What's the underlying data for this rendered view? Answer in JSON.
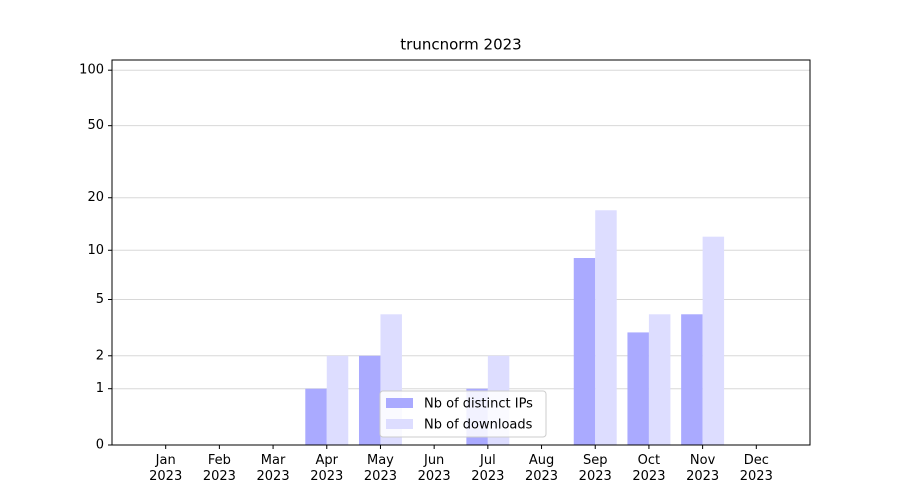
{
  "chart_data": {
    "type": "bar",
    "title": "truncnorm 2023",
    "categories": [
      "Jan\n2023",
      "Feb\n2023",
      "Mar\n2023",
      "Apr\n2023",
      "May\n2023",
      "Jun\n2023",
      "Jul\n2023",
      "Aug\n2023",
      "Sep\n2023",
      "Oct\n2023",
      "Nov\n2023",
      "Dec\n2023"
    ],
    "series": [
      {
        "name": "Nb of distinct IPs",
        "color": "#aaaaff",
        "values": [
          0,
          0,
          0,
          1,
          2,
          0,
          1,
          0,
          9,
          3,
          4,
          0
        ]
      },
      {
        "name": "Nb of downloads",
        "color": "#ddddff",
        "values": [
          0,
          0,
          0,
          2,
          4,
          0,
          2,
          0,
          17,
          4,
          12,
          0
        ]
      }
    ],
    "scale": "log1p",
    "ylim": [
      0,
      113.5
    ],
    "yticks": [
      0,
      1,
      2,
      5,
      10,
      20,
      50,
      100
    ],
    "grid": true,
    "legend": "lower center"
  }
}
